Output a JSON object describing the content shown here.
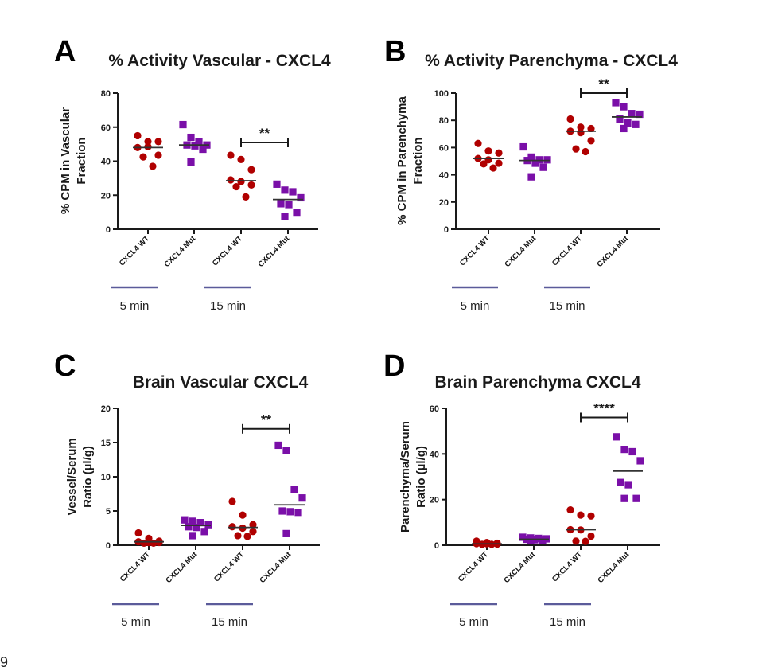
{
  "page_number": "9",
  "chart_data": [
    {
      "id": "A",
      "type": "scatter",
      "panel_letter": "A",
      "title": "% Activity Vascular - CXCL4",
      "ylabel": [
        "% CPM in Vascular",
        "Fraction"
      ],
      "xlabel": "",
      "ylim": [
        0,
        80
      ],
      "yticks": [
        0,
        20,
        40,
        60,
        80
      ],
      "categories": [
        "CXCL4 WT",
        "CXCL4 Mut",
        "CXCL4 WT",
        "CXCL4 Mut"
      ],
      "groups": [
        {
          "label": "5 min",
          "categories": [
            0,
            1
          ]
        },
        {
          "label": "15 min",
          "categories": [
            2,
            3
          ]
        }
      ],
      "series": [
        {
          "name": "CXCL4 WT 5 min",
          "marker": "circle",
          "color": "#b00000",
          "values": [
            55,
            51.5,
            51.5,
            48,
            48.5,
            43.5,
            42.5,
            37
          ],
          "median": 48
        },
        {
          "name": "CXCL4 Mut 5 min",
          "marker": "square",
          "color": "#7a0fa8",
          "values": [
            61.5,
            54,
            51.5,
            49.5,
            49.5,
            49,
            47,
            39.5
          ],
          "median": 49.5
        },
        {
          "name": "CXCL4 WT 15 min",
          "marker": "circle",
          "color": "#b00000",
          "values": [
            43.5,
            41,
            35,
            29,
            28,
            26,
            25,
            19
          ],
          "median": 28.5
        },
        {
          "name": "CXCL4 Mut 15 min",
          "marker": "square",
          "color": "#7a0fa8",
          "values": [
            26.5,
            23,
            22,
            18.5,
            15,
            14.5,
            10,
            7.5
          ],
          "median": 17.5
        }
      ],
      "significance": [
        {
          "from": 2,
          "to": 3,
          "label": "**",
          "y": 51
        }
      ]
    },
    {
      "id": "B",
      "type": "scatter",
      "panel_letter": "B",
      "title": "% Activity Parenchyma - CXCL4",
      "ylabel": [
        "% CPM in Parenchyma",
        "Fraction"
      ],
      "xlabel": "",
      "ylim": [
        0,
        100
      ],
      "yticks": [
        0,
        20,
        40,
        60,
        80,
        100
      ],
      "categories": [
        "CXCL4 WT",
        "CXCL4 Mut",
        "CXCL4 WT",
        "CXCL4 Mut"
      ],
      "groups": [
        {
          "label": "5 min",
          "categories": [
            0,
            1
          ]
        },
        {
          "label": "15 min",
          "categories": [
            2,
            3
          ]
        }
      ],
      "series": [
        {
          "name": "CXCL4 WT 5 min",
          "marker": "circle",
          "color": "#b00000",
          "values": [
            63,
            57.5,
            56,
            52,
            51,
            48.5,
            48,
            45
          ],
          "median": 52
        },
        {
          "name": "CXCL4 Mut 5 min",
          "marker": "square",
          "color": "#7a0fa8",
          "values": [
            60.5,
            53,
            51,
            51,
            50.5,
            48.5,
            45.5,
            38.5
          ],
          "median": 50.5
        },
        {
          "name": "CXCL4 WT 15 min",
          "marker": "circle",
          "color": "#b00000",
          "values": [
            81,
            75,
            74,
            72,
            71,
            65,
            59,
            57
          ],
          "median": 72
        },
        {
          "name": "CXCL4 Mut 15 min",
          "marker": "square",
          "color": "#7a0fa8",
          "values": [
            93,
            90,
            85,
            84.5,
            81,
            78,
            77,
            74
          ],
          "median": 82.5
        }
      ],
      "significance": [
        {
          "from": 2,
          "to": 3,
          "label": "**",
          "y": 100
        }
      ]
    },
    {
      "id": "C",
      "type": "scatter",
      "panel_letter": "C",
      "title": "Brain Vascular CXCL4",
      "ylabel": [
        "Vessel/Serum",
        "Ratio (µl/g)"
      ],
      "xlabel": "",
      "ylim": [
        0,
        20
      ],
      "yticks": [
        0,
        5,
        10,
        15,
        20
      ],
      "categories": [
        "CXCL4 WT",
        "CXCL4 Mut",
        "CXCL4 WT",
        "CXCL4 Mut"
      ],
      "groups": [
        {
          "label": "5 min",
          "categories": [
            0,
            1
          ]
        },
        {
          "label": "15 min",
          "categories": [
            2,
            3
          ]
        }
      ],
      "series": [
        {
          "name": "CXCL4 WT 5 min",
          "marker": "circle",
          "color": "#b00000",
          "values": [
            1.8,
            1.0,
            0.6,
            0.5,
            0.4,
            0.4,
            0.3,
            0.3
          ],
          "median": 0.5
        },
        {
          "name": "CXCL4 Mut 5 min",
          "marker": "square",
          "color": "#7a0fa8",
          "values": [
            3.7,
            3.5,
            3.3,
            3.0,
            2.7,
            2.6,
            2.0,
            1.4
          ],
          "median": 2.9
        },
        {
          "name": "CXCL4 WT 15 min",
          "marker": "circle",
          "color": "#b00000",
          "values": [
            6.4,
            4.4,
            3.0,
            2.7,
            2.5,
            2.0,
            1.4,
            1.3
          ],
          "median": 2.6
        },
        {
          "name": "CXCL4 Mut 15 min",
          "marker": "square",
          "color": "#7a0fa8",
          "values": [
            14.6,
            13.8,
            8.1,
            6.9,
            5.0,
            4.9,
            4.8,
            1.7
          ],
          "median": 5.9
        }
      ],
      "significance": [
        {
          "from": 2,
          "to": 3,
          "label": "**",
          "y": 17
        }
      ]
    },
    {
      "id": "D",
      "type": "scatter",
      "panel_letter": "D",
      "title": "Brain Parenchyma CXCL4",
      "ylabel": [
        "Parenchyma/Serum",
        "Ratio (µl/g)"
      ],
      "xlabel": "",
      "ylim": [
        0,
        60
      ],
      "yticks": [
        0,
        20,
        40,
        60
      ],
      "categories": [
        "CXCL4 WT",
        "CXCL4 Mut",
        "CXCL4 WT",
        "CXCL4 Mut"
      ],
      "groups": [
        {
          "label": "5 min",
          "categories": [
            0,
            1
          ]
        },
        {
          "label": "15 min",
          "categories": [
            2,
            3
          ]
        }
      ],
      "series": [
        {
          "name": "CXCL4 WT 5 min",
          "marker": "circle",
          "color": "#b00000",
          "values": [
            1.8,
            1.2,
            0.9,
            0.7,
            0.6,
            0.5,
            0.4,
            0.4
          ],
          "median": 0.6
        },
        {
          "name": "CXCL4 Mut 5 min",
          "marker": "square",
          "color": "#7a0fa8",
          "values": [
            3.5,
            3.2,
            3.0,
            2.8,
            2.6,
            2.4,
            2.2,
            2.0
          ],
          "median": 2.6
        },
        {
          "name": "CXCL4 WT 15 min",
          "marker": "circle",
          "color": "#b00000",
          "values": [
            15.5,
            13.2,
            12.8,
            6.8,
            6.7,
            4.0,
            1.8,
            1.7
          ],
          "median": 6.8
        },
        {
          "name": "CXCL4 Mut 15 min",
          "marker": "square",
          "color": "#7a0fa8",
          "values": [
            47.5,
            42,
            41,
            37,
            27.5,
            26.5,
            20.5,
            20.5
          ],
          "median": 32.5
        }
      ],
      "significance": [
        {
          "from": 2,
          "to": 3,
          "label": "****",
          "y": 56
        }
      ]
    }
  ],
  "colors": {
    "wt": "#b00000",
    "mut": "#7a0fa8",
    "group_bar": "#5b5b9a",
    "axis": "#1a1a1a"
  }
}
